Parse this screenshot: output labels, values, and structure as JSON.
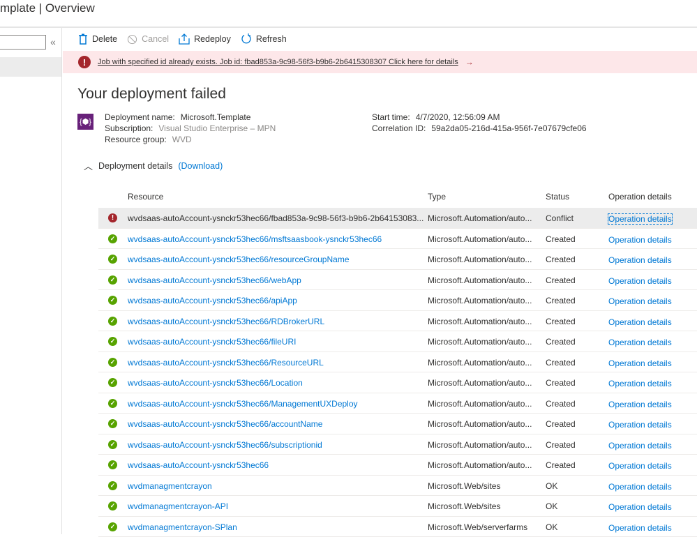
{
  "title": "mplate | Overview",
  "toolbar": {
    "delete": "Delete",
    "cancel": "Cancel",
    "redeploy": "Redeploy",
    "refresh": "Refresh"
  },
  "banner": {
    "message": "Job with specified id already exists. Job id: fbad853a-9c98-56f3-b9b6-2b6415308307 Click here for details",
    "arrow": "→"
  },
  "heading": "Your deployment failed",
  "meta": {
    "deployment_name_label": "Deployment name:",
    "deployment_name": "Microsoft.Template",
    "subscription_label": "Subscription:",
    "subscription": "Visual Studio Enterprise – MPN",
    "resource_group_label": "Resource group:",
    "resource_group": "WVD",
    "start_time_label": "Start time:",
    "start_time": "4/7/2020, 12:56:09 AM",
    "correlation_label": "Correlation ID:",
    "correlation_id": "59a2da05-216d-415a-956f-7e07679cfe06"
  },
  "details": {
    "label": "Deployment details",
    "download": "(Download)"
  },
  "table": {
    "headers": [
      "Resource",
      "Type",
      "Status",
      "Operation details"
    ],
    "rows": [
      {
        "resource": "wvdsaas-autoAccount-ysnckr53hec66/fbad853a-9c98-56f3-b9b6-2b64153083...",
        "type": "Microsoft.Automation/auto...",
        "status": "Conflict",
        "op": "Operation details",
        "state": "error"
      },
      {
        "resource": "wvdsaas-autoAccount-ysnckr53hec66/msftsaasbook-ysnckr53hec66",
        "type": "Microsoft.Automation/auto...",
        "status": "Created",
        "op": "Operation details",
        "state": "ok"
      },
      {
        "resource": "wvdsaas-autoAccount-ysnckr53hec66/resourceGroupName",
        "type": "Microsoft.Automation/auto...",
        "status": "Created",
        "op": "Operation details",
        "state": "ok"
      },
      {
        "resource": "wvdsaas-autoAccount-ysnckr53hec66/webApp",
        "type": "Microsoft.Automation/auto...",
        "status": "Created",
        "op": "Operation details",
        "state": "ok"
      },
      {
        "resource": "wvdsaas-autoAccount-ysnckr53hec66/apiApp",
        "type": "Microsoft.Automation/auto...",
        "status": "Created",
        "op": "Operation details",
        "state": "ok"
      },
      {
        "resource": "wvdsaas-autoAccount-ysnckr53hec66/RDBrokerURL",
        "type": "Microsoft.Automation/auto...",
        "status": "Created",
        "op": "Operation details",
        "state": "ok"
      },
      {
        "resource": "wvdsaas-autoAccount-ysnckr53hec66/fileURI",
        "type": "Microsoft.Automation/auto...",
        "status": "Created",
        "op": "Operation details",
        "state": "ok"
      },
      {
        "resource": "wvdsaas-autoAccount-ysnckr53hec66/ResourceURL",
        "type": "Microsoft.Automation/auto...",
        "status": "Created",
        "op": "Operation details",
        "state": "ok"
      },
      {
        "resource": "wvdsaas-autoAccount-ysnckr53hec66/Location",
        "type": "Microsoft.Automation/auto...",
        "status": "Created",
        "op": "Operation details",
        "state": "ok"
      },
      {
        "resource": "wvdsaas-autoAccount-ysnckr53hec66/ManagementUXDeploy",
        "type": "Microsoft.Automation/auto...",
        "status": "Created",
        "op": "Operation details",
        "state": "ok"
      },
      {
        "resource": "wvdsaas-autoAccount-ysnckr53hec66/accountName",
        "type": "Microsoft.Automation/auto...",
        "status": "Created",
        "op": "Operation details",
        "state": "ok"
      },
      {
        "resource": "wvdsaas-autoAccount-ysnckr53hec66/subscriptionid",
        "type": "Microsoft.Automation/auto...",
        "status": "Created",
        "op": "Operation details",
        "state": "ok"
      },
      {
        "resource": "wvdsaas-autoAccount-ysnckr53hec66",
        "type": "Microsoft.Automation/auto...",
        "status": "Created",
        "op": "Operation details",
        "state": "ok"
      },
      {
        "resource": "wvdmanagmentcrayon",
        "type": "Microsoft.Web/sites",
        "status": "OK",
        "op": "Operation details",
        "state": "ok"
      },
      {
        "resource": "wvdmanagmentcrayon-API",
        "type": "Microsoft.Web/sites",
        "status": "OK",
        "op": "Operation details",
        "state": "ok"
      },
      {
        "resource": "wvdmanagmentcrayon-SPlan",
        "type": "Microsoft.Web/serverfarms",
        "status": "OK",
        "op": "Operation details",
        "state": "ok"
      }
    ]
  },
  "colors": {
    "accent": "#0078d4",
    "error": "#a4262c",
    "success": "#57a300",
    "banner_bg": "#fde7e9"
  }
}
